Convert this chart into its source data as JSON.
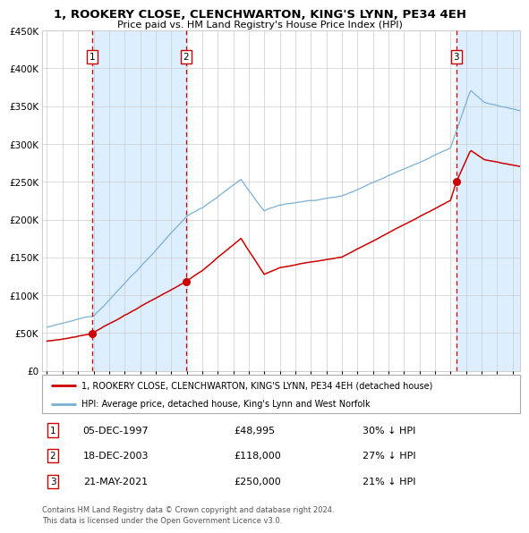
{
  "title": "1, ROOKERY CLOSE, CLENCHWARTON, KING'S LYNN, PE34 4EH",
  "subtitle": "Price paid vs. HM Land Registry's House Price Index (HPI)",
  "sales": [
    {
      "num": 1,
      "date": "05-DEC-1997",
      "price": 48995,
      "hpi_diff": "30% ↓ HPI",
      "year": 1997.92
    },
    {
      "num": 2,
      "date": "18-DEC-2003",
      "price": 118000,
      "hpi_diff": "27% ↓ HPI",
      "year": 2003.96
    },
    {
      "num": 3,
      "date": "21-MAY-2021",
      "price": 250000,
      "hpi_diff": "21% ↓ HPI",
      "year": 2021.38
    }
  ],
  "legend_property": "1, ROOKERY CLOSE, CLENCHWARTON, KING'S LYNN, PE34 4EH (detached house)",
  "legend_hpi": "HPI: Average price, detached house, King's Lynn and West Norfolk",
  "footnote": "Contains HM Land Registry data © Crown copyright and database right 2024.\nThis data is licensed under the Open Government Licence v3.0.",
  "ylim": [
    0,
    450000
  ],
  "yticks": [
    0,
    50000,
    100000,
    150000,
    200000,
    250000,
    300000,
    350000,
    400000,
    450000
  ],
  "xlim_start": 1994.7,
  "xlim_end": 2025.5,
  "property_color": "#cc0000",
  "hpi_color": "#7ab0d4",
  "shade_color": "#ddeeff",
  "vline_color": "#cc0000",
  "grid_color": "#cccccc",
  "bg_color": "#ffffff"
}
